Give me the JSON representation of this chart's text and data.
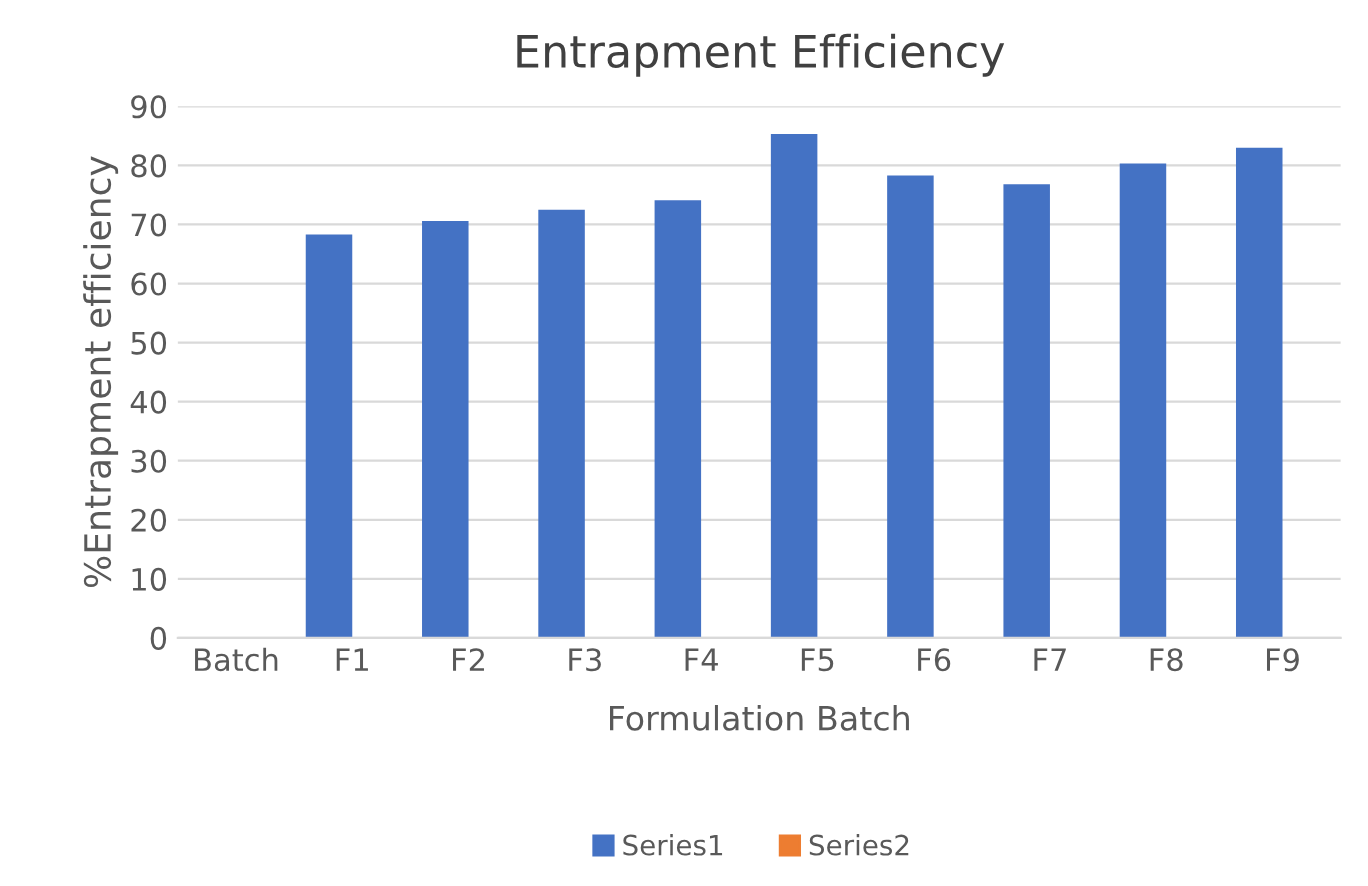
{
  "chart_data": {
    "type": "bar",
    "title": "Entrapment Efficiency",
    "xlabel": "Formulation Batch",
    "ylabel": "%Entrapment efficiency",
    "categories": [
      "Batch",
      "F1",
      "F2",
      "F3",
      "F4",
      "F5",
      "F6",
      "F7",
      "F8",
      "F9"
    ],
    "series": [
      {
        "name": "Series1",
        "color": "#4472c4",
        "values": [
          null,
          68.3,
          70.6,
          72.5,
          74.1,
          85.3,
          78.3,
          76.8,
          80.3,
          83.0
        ]
      },
      {
        "name": "Series2",
        "color": "#ed7d31",
        "values": [
          null,
          null,
          null,
          null,
          null,
          null,
          null,
          null,
          null,
          null
        ]
      }
    ],
    "ylim": [
      0,
      90
    ],
    "yticks": [
      0,
      10,
      20,
      30,
      40,
      50,
      60,
      70,
      80,
      90
    ],
    "grid": "y",
    "legend": "bottom"
  }
}
